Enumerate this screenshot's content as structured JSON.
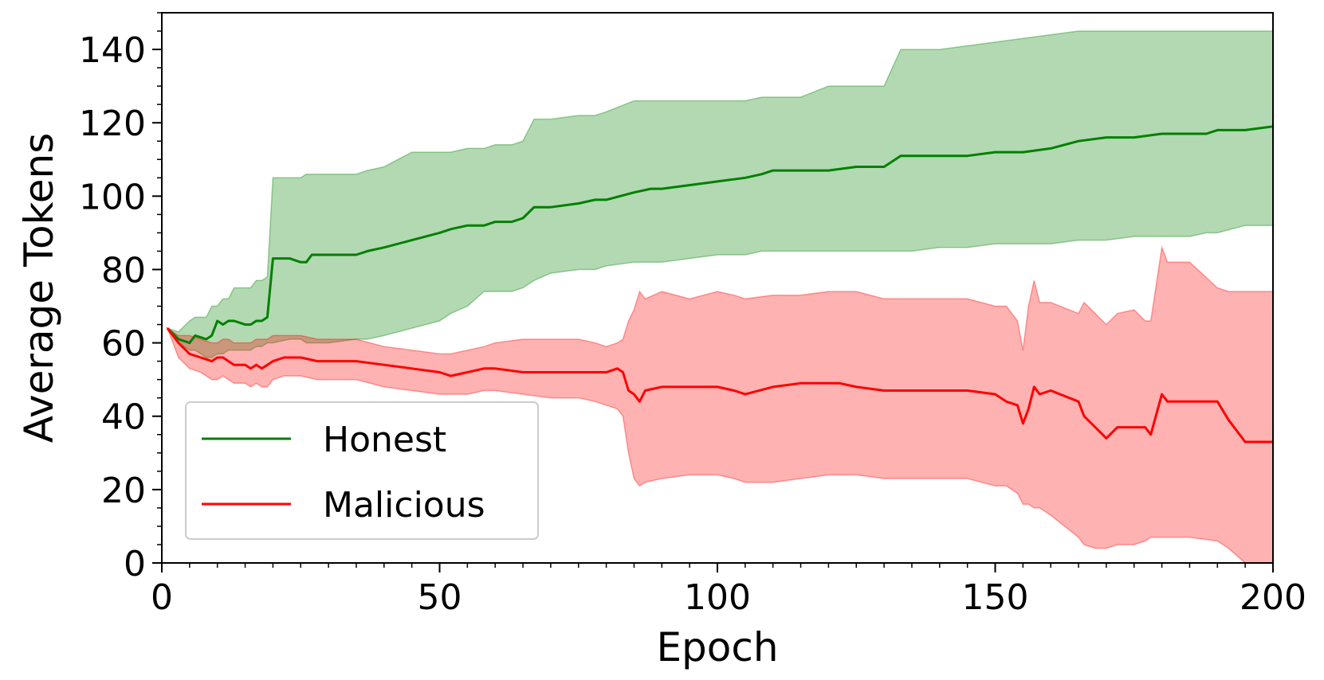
{
  "chart_data": {
    "type": "line",
    "title": "",
    "xlabel": "Epoch",
    "ylabel": "Average Tokens",
    "xlim": [
      0,
      200
    ],
    "ylim": [
      0,
      150
    ],
    "xticks": [
      0,
      50,
      100,
      150,
      200
    ],
    "yticks": [
      0,
      20,
      40,
      60,
      80,
      100,
      120,
      140
    ],
    "grid": false,
    "legend_position": "lower-left",
    "series": [
      {
        "name": "Honest",
        "color": "#008000",
        "band_color": "#b2d8b2",
        "x": [
          1,
          3,
          5,
          6,
          8,
          9,
          10,
          11,
          12,
          13,
          15,
          16,
          17,
          18,
          19,
          20,
          23,
          25,
          26,
          27,
          30,
          35,
          37,
          40,
          45,
          50,
          52,
          55,
          58,
          60,
          63,
          65,
          67,
          70,
          75,
          78,
          80,
          85,
          88,
          90,
          95,
          100,
          105,
          108,
          110,
          115,
          120,
          125,
          130,
          133,
          135,
          140,
          145,
          150,
          155,
          160,
          165,
          170,
          175,
          180,
          185,
          188,
          190,
          195,
          200
        ],
        "mean": [
          64,
          61,
          60,
          62,
          61,
          62,
          66,
          65,
          66,
          66,
          65,
          65,
          66,
          66,
          67,
          83,
          83,
          82,
          82,
          84,
          84,
          84,
          85,
          86,
          88,
          90,
          91,
          92,
          92,
          93,
          93,
          94,
          97,
          97,
          98,
          99,
          99,
          101,
          102,
          102,
          103,
          104,
          105,
          106,
          107,
          107,
          107,
          108,
          108,
          111,
          111,
          111,
          111,
          112,
          112,
          113,
          115,
          116,
          116,
          117,
          117,
          117,
          118,
          118,
          119
        ],
        "upper": [
          64,
          63,
          66,
          67,
          67,
          70,
          70,
          72,
          72,
          75,
          75,
          75,
          77,
          77,
          78,
          105,
          105,
          105,
          106,
          106,
          106,
          106,
          107,
          108,
          112,
          112,
          112,
          113,
          113,
          114,
          114,
          115,
          121,
          121,
          122,
          122,
          123,
          126,
          126,
          126,
          126,
          126,
          126,
          127,
          127,
          127,
          130,
          130,
          130,
          140,
          140,
          140,
          141,
          142,
          143,
          144,
          145,
          145,
          145,
          145,
          145,
          145,
          145,
          145,
          145
        ],
        "lower": [
          64,
          60,
          58,
          58,
          56,
          56,
          57,
          57,
          58,
          58,
          58,
          58,
          59,
          59,
          60,
          60,
          61,
          61,
          60,
          60,
          60,
          61,
          61,
          62,
          64,
          66,
          68,
          70,
          74,
          74,
          74,
          75,
          77,
          79,
          80,
          80,
          81,
          82,
          82,
          82,
          83,
          84,
          84,
          85,
          85,
          85,
          85,
          85,
          85,
          85,
          85,
          86,
          86,
          87,
          87,
          87,
          88,
          88,
          89,
          89,
          89,
          90,
          90,
          92,
          92
        ]
      },
      {
        "name": "Malicious",
        "color": "#ff0000",
        "band_color": "#ffb0b0",
        "x": [
          1,
          3,
          5,
          7,
          9,
          10,
          11,
          12,
          13,
          15,
          16,
          17,
          18,
          19,
          20,
          22,
          25,
          28,
          30,
          35,
          40,
          45,
          50,
          52,
          55,
          58,
          60,
          65,
          70,
          75,
          78,
          80,
          82,
          83,
          84,
          85,
          86,
          87,
          90,
          95,
          100,
          103,
          105,
          110,
          115,
          120,
          122,
          125,
          130,
          140,
          145,
          150,
          152,
          154,
          155,
          156,
          157,
          158,
          160,
          165,
          166,
          168,
          170,
          172,
          175,
          177,
          178,
          180,
          181,
          185,
          190,
          192,
          195,
          200
        ],
        "mean": [
          64,
          60,
          57,
          56,
          55,
          56,
          56,
          55,
          54,
          54,
          53,
          54,
          53,
          54,
          55,
          56,
          56,
          55,
          55,
          55,
          54,
          53,
          52,
          51,
          52,
          53,
          53,
          52,
          52,
          52,
          52,
          52,
          53,
          52,
          47,
          46,
          44,
          47,
          48,
          48,
          48,
          47,
          46,
          48,
          49,
          49,
          49,
          48,
          47,
          47,
          47,
          46,
          44,
          43,
          38,
          42,
          48,
          46,
          47,
          44,
          40,
          37,
          34,
          37,
          37,
          37,
          35,
          46,
          44,
          44,
          44,
          39,
          33,
          33
        ],
        "upper": [
          64,
          62,
          62,
          61,
          60,
          60,
          61,
          61,
          60,
          60,
          60,
          61,
          61,
          61,
          62,
          62,
          62,
          61,
          61,
          61,
          59,
          58,
          57,
          57,
          58,
          59,
          60,
          61,
          61,
          61,
          60,
          59,
          60,
          61,
          66,
          69,
          74,
          72,
          74,
          72,
          74,
          73,
          72,
          73,
          73,
          74,
          74,
          74,
          72,
          72,
          72,
          70,
          70,
          66,
          58,
          70,
          77,
          71,
          71,
          68,
          71,
          68,
          65,
          68,
          69,
          66,
          66,
          86,
          82,
          82,
          75,
          74,
          74,
          74
        ],
        "lower": [
          64,
          56,
          53,
          52,
          50,
          50,
          51,
          50,
          49,
          49,
          48,
          49,
          48,
          48,
          50,
          51,
          51,
          50,
          50,
          50,
          48,
          47,
          46,
          46,
          46,
          47,
          47,
          46,
          45,
          45,
          44,
          43,
          42,
          40,
          30,
          23,
          21,
          22,
          23,
          24,
          24,
          23,
          22,
          22,
          23,
          24,
          24,
          24,
          23,
          23,
          23,
          21,
          21,
          19,
          16,
          16,
          15,
          15,
          13,
          7,
          5,
          4,
          4,
          5,
          5,
          6,
          7,
          7,
          7,
          7,
          6,
          4,
          0,
          0
        ]
      }
    ]
  }
}
